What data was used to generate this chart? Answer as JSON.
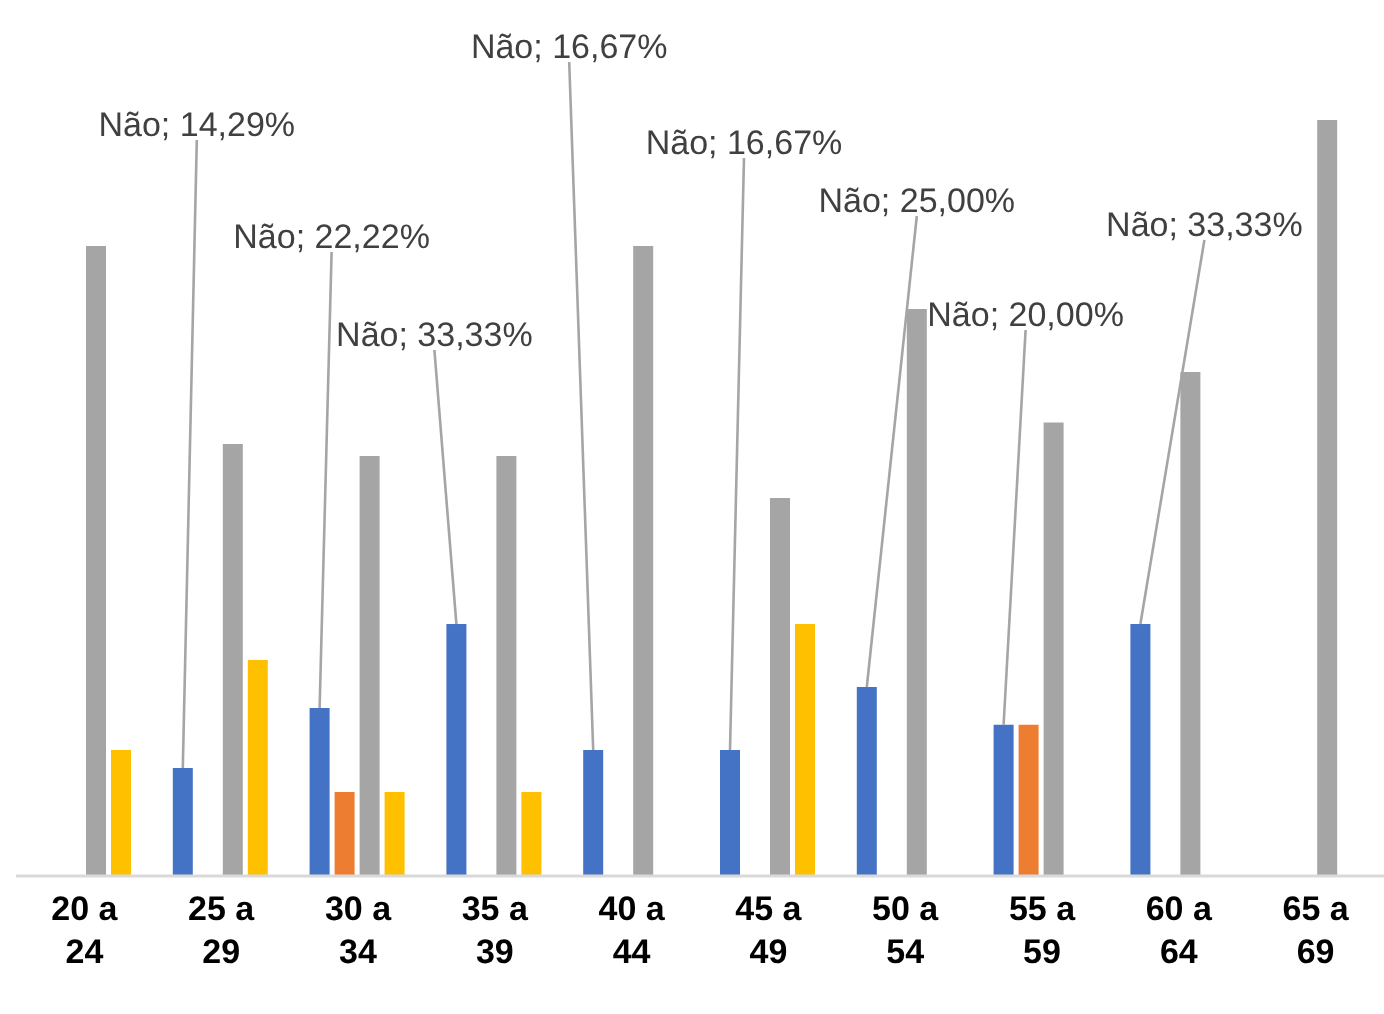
{
  "chart_data": {
    "type": "bar",
    "categories": [
      "20 a 24",
      "25 a 29",
      "30 a 34",
      "35 a 39",
      "40 a 44",
      "45 a 49",
      "50 a 54",
      "55 a 59",
      "60 a 64",
      "65 a 69"
    ],
    "series": [
      {
        "color": "#4472c4",
        "values": [
          null,
          14.29,
          22.22,
          33.33,
          16.67,
          16.67,
          25,
          20,
          33.33,
          null
        ],
        "value_labels": [
          null,
          "Não; 14,29%",
          "Não; 22,22%",
          "Não; 33,33%",
          "Não; 16,67%",
          "Não; 16,67%",
          "Não; 25,00%",
          "Não; 20,00%",
          "Não; 33,33%",
          null
        ]
      },
      {
        "color": "#ed7d31",
        "values": [
          null,
          null,
          11.11,
          null,
          null,
          null,
          null,
          20,
          null,
          null
        ]
      },
      {
        "color": "#a5a5a5",
        "values": [
          83.33,
          57.14,
          55.56,
          55.56,
          83.33,
          50,
          75,
          60,
          66.67,
          100
        ]
      },
      {
        "color": "#ffc000",
        "values": [
          16.67,
          28.57,
          11.11,
          11.11,
          null,
          33.33,
          null,
          null,
          null,
          null
        ]
      }
    ],
    "ylim": [
      0,
      100
    ],
    "tick_labels": "x",
    "grid": false,
    "legend": false
  }
}
